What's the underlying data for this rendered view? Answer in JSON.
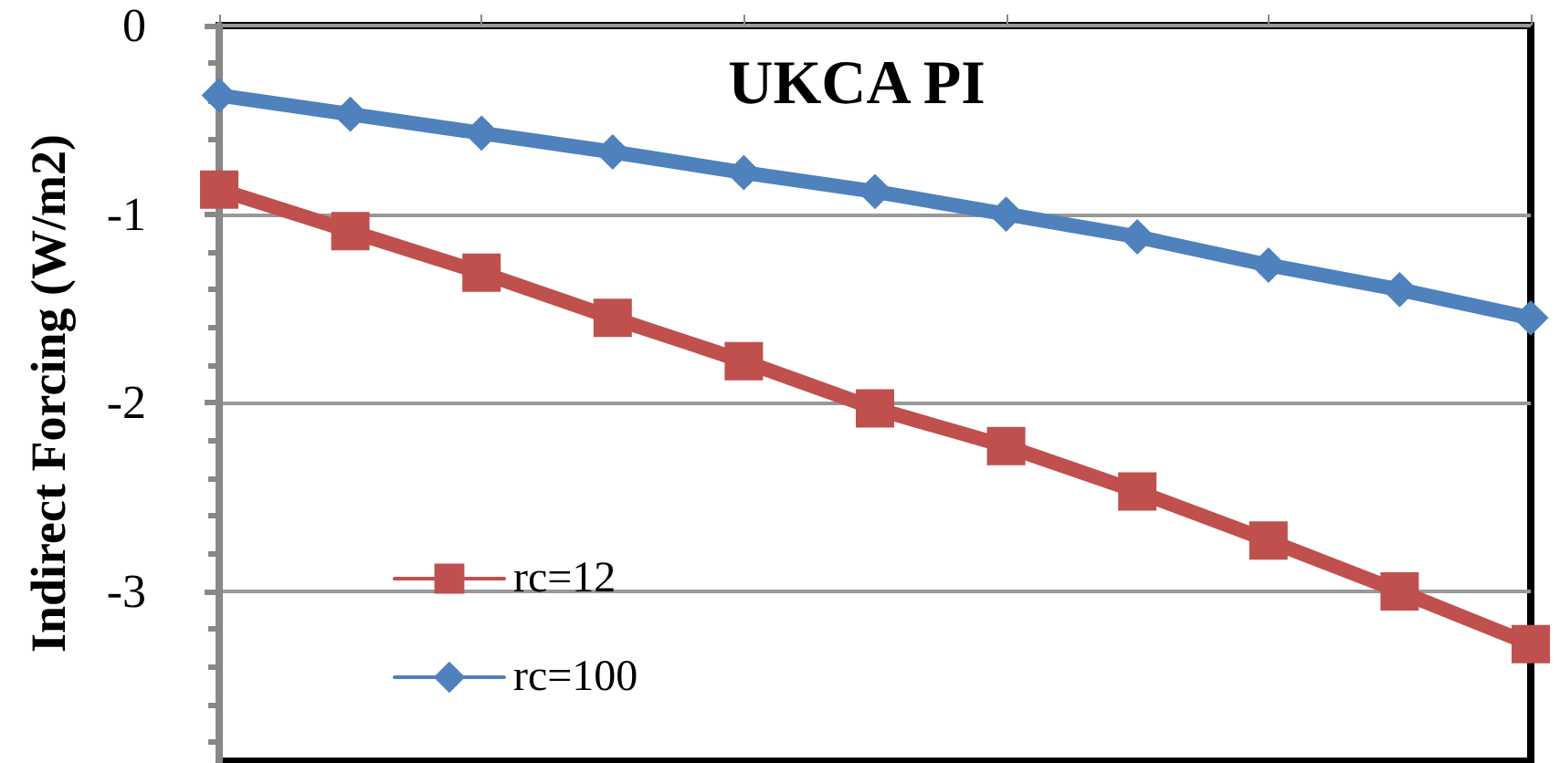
{
  "chart_data": {
    "type": "line",
    "title": "UKCA PI",
    "ylabel": "Indirect Forcing (W/m2)",
    "categories": [
      null,
      null,
      null,
      null,
      null,
      null,
      null,
      null,
      null,
      null,
      null
    ],
    "series": [
      {
        "name": "rc=12",
        "color": "#c0504d",
        "marker": "square",
        "values": [
          -0.87,
          -1.09,
          -1.31,
          -1.55,
          -1.78,
          -2.03,
          -2.23,
          -2.47,
          -2.73,
          -3.0,
          -3.28
        ]
      },
      {
        "name": "rc=100",
        "color": "#4f81bd",
        "marker": "diamond",
        "values": [
          -0.37,
          -0.47,
          -0.57,
          -0.67,
          -0.78,
          -0.88,
          -1.0,
          -1.12,
          -1.27,
          -1.4,
          -1.55
        ]
      }
    ],
    "ylim": [
      -3.9,
      0
    ],
    "yticks": [
      0,
      -1,
      -2,
      -3
    ],
    "grid": "y",
    "legend": "bottom left",
    "tick_labels": "y",
    "line_style": "solid"
  }
}
